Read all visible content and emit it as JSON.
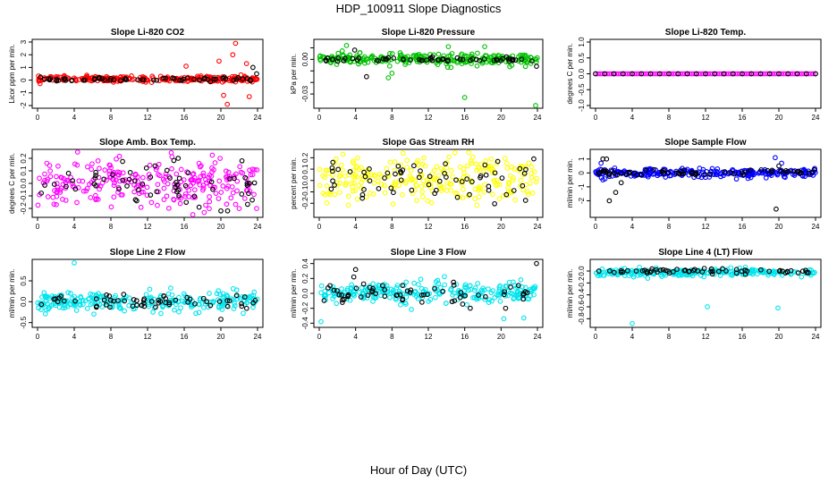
{
  "title": "HDP_100911  Slope Diagnostics",
  "xlabel": "Hour of Day (UTC)",
  "chart_data": [
    {
      "type": "scatter",
      "title": "Slope Li-820 CO2",
      "ylabel": "Licor ppm per min.",
      "color": "#ff0000",
      "xlim": [
        0,
        24
      ],
      "ylim": [
        -2,
        3
      ],
      "yticks": [
        -2,
        -1,
        0,
        1,
        2,
        3
      ],
      "ytick_labels": [
        "-2",
        "-1",
        "0",
        "1",
        "2",
        "3"
      ],
      "xticks": [
        0,
        4,
        8,
        12,
        16,
        20,
        24
      ],
      "series_main": {
        "spread": 0.18,
        "center": 0.1,
        "outliers": [
          [
            21.6,
            2.9
          ],
          [
            21.3,
            2.0
          ],
          [
            19.8,
            1.5
          ],
          [
            22.8,
            1.3
          ],
          [
            20.7,
            -1.9
          ],
          [
            23.1,
            -1.3
          ],
          [
            16.2,
            1.1
          ],
          [
            20.3,
            -1.2
          ]
        ]
      },
      "series_black": {
        "spread": 0.12,
        "center": 0.05,
        "outliers": [
          [
            23.5,
            1.0
          ],
          [
            23.9,
            0.5
          ],
          [
            21.9,
            0.2
          ]
        ]
      }
    },
    {
      "type": "scatter",
      "title": "Slope Li-820 Pressure",
      "ylabel": "kPa per min.",
      "color": "#00c000",
      "xlim": [
        0,
        24
      ],
      "ylim": [
        -0.04,
        0.015
      ],
      "yticks": [
        -0.03,
        -0.02,
        -0.01,
        0.0,
        0.01
      ],
      "ytick_labels": [
        "-0.03",
        "",
        "",
        "0.00",
        ""
      ],
      "xticks": [
        0,
        4,
        8,
        12,
        16,
        20,
        24
      ],
      "series_main": {
        "spread": 0.004,
        "center": 0.0,
        "outliers": [
          [
            3.0,
            0.012
          ],
          [
            7.6,
            -0.016
          ],
          [
            16.0,
            -0.033
          ],
          [
            23.8,
            -0.04
          ],
          [
            8.0,
            -0.012
          ],
          [
            14.2,
            0.011
          ],
          [
            18.2,
            0.011
          ]
        ]
      },
      "series_black": {
        "spread": 0.0015,
        "center": 0.0,
        "outliers": [
          [
            5.2,
            -0.015
          ],
          [
            3.9,
            0.008
          ],
          [
            23.9,
            -0.006
          ]
        ]
      }
    },
    {
      "type": "scatter",
      "title": "Slope Li-820 Temp.",
      "ylabel": "degrees C per min.",
      "color": "#ff00ff",
      "xlim": [
        0,
        24
      ],
      "ylim": [
        -1,
        1
      ],
      "yticks": [
        -1,
        -0.5,
        0,
        0.5,
        1
      ],
      "ytick_labels": [
        "-1.0",
        "-0.5",
        "0.0",
        "0.5",
        "1.0"
      ],
      "xticks": [
        0,
        4,
        8,
        12,
        16,
        20,
        24
      ],
      "series_main": {
        "spread": 0.0,
        "center": 0.0,
        "outliers": []
      },
      "series_black": {
        "spread": 0.0,
        "center": 0.0,
        "outliers": []
      }
    },
    {
      "type": "scatter",
      "title": "Slope Amb. Box Temp.",
      "ylabel": "degrees C per min.",
      "color": "#ff00ff",
      "xlim": [
        0,
        24
      ],
      "ylim": [
        -0.25,
        0.25
      ],
      "yticks": [
        -0.2,
        -0.1,
        0.0,
        0.1,
        0.2
      ],
      "ytick_labels": [
        "-0.2",
        "-0.1",
        "0.0",
        "0.1",
        "0.2"
      ],
      "xticks": [
        0,
        4,
        8,
        12,
        16,
        20,
        24
      ],
      "series_main": {
        "spread": 0.16,
        "center": 0.0,
        "outliers": []
      },
      "series_black": {
        "spread": 0.14,
        "center": 0.0,
        "outliers": [
          [
            20.0,
            -0.22
          ],
          [
            22.3,
            0.18
          ]
        ]
      }
    },
    {
      "type": "scatter",
      "title": "Slope Gas Stream RH",
      "ylabel": "percent per min.",
      "color": "#ffff00",
      "xlim": [
        0,
        24
      ],
      "ylim": [
        -0.3,
        0.25
      ],
      "yticks": [
        -0.2,
        -0.1,
        0.0,
        0.1,
        0.2
      ],
      "ytick_labels": [
        "-0.2",
        "-0.1",
        "0.0",
        "0.1",
        "0.2"
      ],
      "xticks": [
        0,
        4,
        8,
        12,
        16,
        20,
        24
      ],
      "series_main": {
        "spread": 0.18,
        "center": 0.0,
        "outliers": []
      },
      "series_black": {
        "spread": 0.13,
        "center": 0.0,
        "outliers": [
          [
            1.5,
            0.16
          ],
          [
            23.6,
            0.19
          ]
        ]
      }
    },
    {
      "type": "scatter",
      "title": "Slope Sample Flow",
      "ylabel": "ml/min per min.",
      "color": "#0000ff",
      "xlim": [
        0,
        24
      ],
      "ylim": [
        -3,
        1.5
      ],
      "yticks": [
        -2,
        -1,
        0,
        1
      ],
      "ytick_labels": [
        "-2",
        "-1",
        "0",
        "1"
      ],
      "xticks": [
        0,
        4,
        8,
        12,
        16,
        20,
        24
      ],
      "series_main": {
        "spread": 0.25,
        "center": 0.0,
        "outliers": [
          [
            19.6,
            1.1
          ],
          [
            20.3,
            0.7
          ],
          [
            0.6,
            0.7
          ]
        ]
      },
      "series_black": {
        "spread": 0.2,
        "center": 0.0,
        "outliers": [
          [
            0.8,
            1.0
          ],
          [
            1.2,
            1.0
          ],
          [
            1.5,
            -2.0
          ],
          [
            2.2,
            -1.4
          ],
          [
            2.8,
            -0.7
          ],
          [
            19.7,
            -2.6
          ],
          [
            20.0,
            0.5
          ]
        ]
      }
    },
    {
      "type": "scatter",
      "title": "Slope Line 2 Flow",
      "ylabel": "ml/min per min.",
      "color": "#00e5ee",
      "xlim": [
        0,
        24
      ],
      "ylim": [
        -0.55,
        0.95
      ],
      "yticks": [
        -0.5,
        0.0,
        0.5
      ],
      "ytick_labels": [
        "-0.5",
        "0.0",
        "0.5"
      ],
      "xticks": [
        0,
        4,
        8,
        12,
        16,
        20,
        24
      ],
      "series_main": {
        "spread": 0.2,
        "center": 0.0,
        "outliers": [
          [
            4.0,
            0.93
          ]
        ]
      },
      "series_black": {
        "spread": 0.15,
        "center": 0.0,
        "outliers": [
          [
            20.0,
            -0.42
          ]
        ]
      }
    },
    {
      "type": "scatter",
      "title": "Slope Line 3 Flow",
      "ylabel": "ml/min per min.",
      "color": "#00e5ee",
      "xlim": [
        0,
        24
      ],
      "ylim": [
        -0.42,
        0.42
      ],
      "yticks": [
        -0.4,
        -0.2,
        0.0,
        0.2,
        0.4
      ],
      "ytick_labels": [
        "-0.4",
        "-0.2",
        "0.0",
        "0.2",
        "0.4"
      ],
      "xticks": [
        0,
        4,
        8,
        12,
        16,
        20,
        24
      ],
      "series_main": {
        "spread": 0.12,
        "center": 0.0,
        "outliers": [
          [
            0.2,
            -0.38
          ],
          [
            22.5,
            -0.33
          ],
          [
            20.3,
            -0.34
          ]
        ]
      },
      "series_black": {
        "spread": 0.1,
        "center": 0.0,
        "outliers": [
          [
            4.0,
            0.32
          ],
          [
            3.8,
            0.22
          ],
          [
            23.9,
            0.4
          ],
          [
            20.5,
            -0.2
          ]
        ]
      }
    },
    {
      "type": "scatter",
      "title": "Slope Line 4 (LT) Flow",
      "ylabel": "ml/min per min.",
      "color": "#00e5ee",
      "xlim": [
        0,
        24
      ],
      "ylim": [
        -0.9,
        0.15
      ],
      "yticks": [
        -0.8,
        -0.6,
        -0.4,
        -0.2,
        0.0
      ],
      "ytick_labels": [
        "-0.8",
        "-0.6",
        "-0.4",
        "-0.2",
        "0.0"
      ],
      "xticks": [
        0,
        4,
        8,
        12,
        16,
        20,
        24
      ],
      "series_main": {
        "spread": 0.05,
        "center": -0.02,
        "outliers": [
          [
            4.0,
            -0.88
          ],
          [
            12.2,
            -0.6
          ],
          [
            19.9,
            -0.62
          ]
        ]
      },
      "series_black": {
        "spread": 0.04,
        "center": 0.0,
        "outliers": []
      }
    }
  ]
}
